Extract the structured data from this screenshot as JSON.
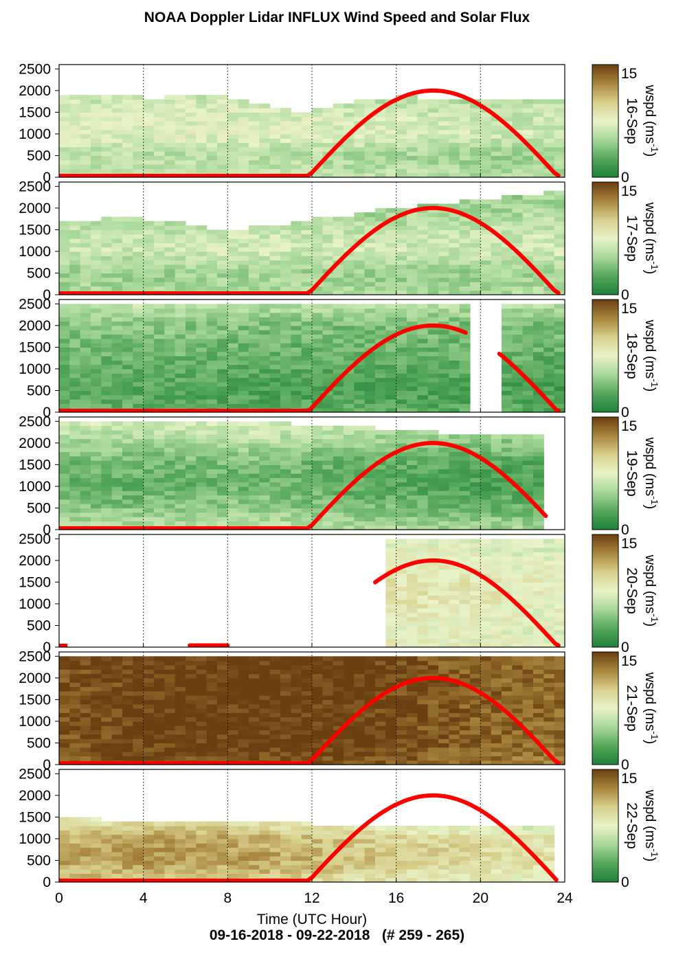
{
  "title": "NOAA Doppler Lidar INFLUX Wind Speed and Solar Flux",
  "footer": "09-16-2018 - 09-22-2018   (# 259 - 265)",
  "chart_data": {
    "type": "heatmap",
    "xlabel": "Time (UTC Hour)",
    "xlim": [
      0,
      24
    ],
    "x_ticks": [
      "0",
      "4",
      "8",
      "12",
      "16",
      "20",
      "24"
    ],
    "ylim": [
      0,
      2600
    ],
    "y_ticks": [
      "0",
      "500",
      "1000",
      "1500",
      "2000",
      "2500"
    ],
    "colorbar": {
      "label": "wspd (ms-1)",
      "label_main": "wspd (ms",
      "label_sup": "-1",
      "label_close": ")",
      "range": [
        0,
        15
      ],
      "ticks": [
        "0",
        "15"
      ],
      "colors": [
        "#1f7f3a",
        "#55a85a",
        "#a8d89a",
        "#e9f3c8",
        "#d8cf8c",
        "#a8853d",
        "#6b3f10"
      ]
    },
    "solar_flux_color": "#ff0000",
    "panels": [
      {
        "date": "16-Sep",
        "speed_profile": [
          7,
          6,
          9,
          8,
          6,
          5
        ],
        "diurnal_speed": [
          5,
          5,
          5,
          4,
          3,
          3
        ],
        "data_hours": [
          [
            0,
            23.8
          ]
        ],
        "top_heights": [
          1850,
          1850,
          1900,
          1900,
          1800,
          1850,
          1850,
          1900,
          1800,
          1700,
          1600,
          1500,
          1600,
          1700,
          1800,
          1800,
          1850,
          1800,
          1750,
          1800,
          1750,
          1800,
          1800,
          1800
        ],
        "solar": [
          [
            11.8,
            23.7
          ]
        ]
      },
      {
        "date": "17-Sep",
        "speed_profile": [
          6,
          5,
          8,
          7,
          5,
          5
        ],
        "diurnal_speed": [
          4,
          4,
          5,
          4,
          4,
          5
        ],
        "data_hours": [
          [
            0,
            23.8
          ]
        ],
        "top_heights": [
          1700,
          1700,
          1750,
          1750,
          1700,
          1650,
          1600,
          1500,
          1500,
          1550,
          1600,
          1650,
          1750,
          1800,
          1900,
          1950,
          2000,
          2050,
          2100,
          2150,
          2200,
          2250,
          2300,
          2350
        ],
        "solar": [
          [
            11.8,
            23.7
          ]
        ]
      },
      {
        "date": "18-Sep",
        "speed_profile": [
          3,
          2,
          3,
          4,
          5,
          9
        ],
        "diurnal_speed": [
          3,
          3,
          2,
          2,
          2,
          2
        ],
        "data_hours": [
          [
            0,
            19.4
          ],
          [
            21,
            23.8
          ]
        ],
        "top_heights": [
          2500,
          2500,
          2500,
          2500,
          2500,
          2500,
          2500,
          2500,
          2500,
          2500,
          2500,
          2500,
          2500,
          2500,
          2500,
          2500,
          2500,
          2500,
          2500,
          2500,
          2500,
          2500,
          2500,
          2500
        ],
        "solar": [
          [
            11.8,
            19.3
          ],
          [
            20.9,
            23.7
          ]
        ]
      },
      {
        "date": "19-Sep",
        "speed_profile": [
          7,
          4,
          2,
          3,
          6,
          9
        ],
        "diurnal_speed": [
          4,
          4,
          5,
          3,
          2,
          2
        ],
        "data_hours": [
          [
            0,
            23.2
          ]
        ],
        "top_heights": [
          2450,
          2450,
          2450,
          2450,
          2450,
          2450,
          2450,
          2450,
          2450,
          2450,
          2450,
          2400,
          2400,
          2400,
          2350,
          2300,
          2300,
          2250,
          2200,
          2200,
          2150,
          2150,
          2150,
          2150
        ],
        "solar": [
          [
            11.8,
            23.1
          ]
        ]
      },
      {
        "date": "20-Sep",
        "speed_profile": [
          8,
          8,
          9,
          9,
          8,
          7
        ],
        "diurnal_speed": [
          7,
          7,
          8,
          8,
          7,
          6
        ],
        "data_hours": [
          [
            15.4,
            23.8
          ]
        ],
        "top_heights": [
          2500,
          2500,
          2500,
          2500,
          2500,
          2500,
          2500,
          2500,
          2500,
          2500,
          2500,
          2500,
          2500,
          2500,
          2500,
          2500,
          2500,
          2500,
          2500,
          2500,
          2500,
          2500,
          2500,
          2500
        ],
        "solar": [
          [
            15,
            23.7
          ],
          [
            6.2,
            8
          ]
        ]
      },
      {
        "date": "21-Sep",
        "speed_profile": [
          14,
          15,
          15,
          15,
          15,
          15
        ],
        "diurnal_speed": [
          13,
          15,
          15,
          15,
          12,
          11
        ],
        "data_hours": [
          [
            0,
            23.8
          ]
        ],
        "top_heights": [
          2500,
          2500,
          2500,
          2500,
          2500,
          2500,
          2500,
          2500,
          2500,
          2500,
          2500,
          2500,
          2500,
          2500,
          2500,
          2500,
          2500,
          2500,
          2500,
          2500,
          2500,
          2500,
          2500,
          2500
        ],
        "solar": [
          [
            11.8,
            23.7
          ]
        ]
      },
      {
        "date": "22-Sep",
        "speed_profile": [
          9,
          12,
          11,
          5,
          4,
          3
        ],
        "diurnal_speed": [
          11,
          12,
          11,
          8,
          6,
          4
        ],
        "data_hours": [
          [
            0,
            23.3
          ]
        ],
        "top_heights": [
          1500,
          1450,
          1400,
          1400,
          1400,
          1400,
          1400,
          1400,
          1400,
          1400,
          1350,
          1350,
          1300,
          1300,
          1300,
          1300,
          1300,
          1300,
          1300,
          1300,
          1300,
          1300,
          1300,
          1300
        ],
        "solar": [
          [
            11.8,
            23.6
          ]
        ]
      }
    ]
  }
}
